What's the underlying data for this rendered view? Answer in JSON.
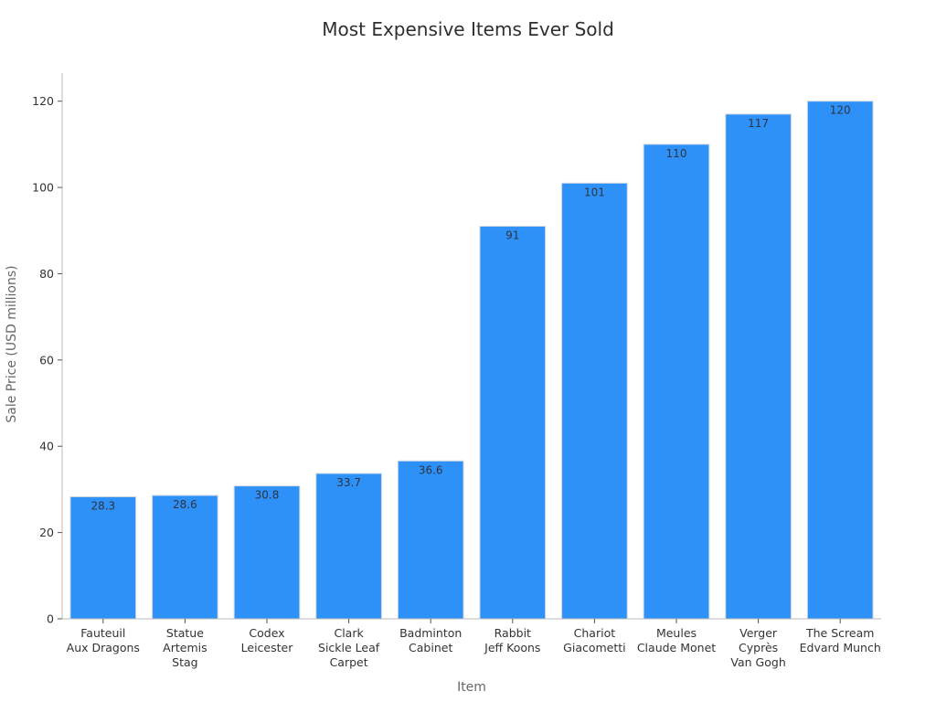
{
  "chart_data": {
    "type": "bar",
    "title": "Most Expensive Items Ever Sold",
    "xlabel": "Item",
    "ylabel": "Sale Price (USD millions)",
    "categories": [
      [
        "Fauteuil",
        "Aux Dragons"
      ],
      [
        "Statue",
        "Artemis",
        "Stag"
      ],
      [
        "Codex",
        "Leicester"
      ],
      [
        "Clark",
        "Sickle Leaf",
        "Carpet"
      ],
      [
        "Badminton",
        "Cabinet"
      ],
      [
        "Rabbit",
        "Jeff Koons"
      ],
      [
        "Chariot",
        "Giacometti"
      ],
      [
        "Meules",
        "Claude Monet"
      ],
      [
        "Verger",
        "Cyprès",
        "Van Gogh"
      ],
      [
        "The Scream",
        "Edvard Munch"
      ]
    ],
    "values": [
      28.3,
      28.6,
      30.8,
      33.7,
      36.6,
      91,
      101,
      110,
      117,
      120
    ],
    "value_labels": [
      "28.3",
      "28.6",
      "30.8",
      "33.7",
      "36.6",
      "91",
      "101",
      "110",
      "117",
      "120"
    ],
    "ylim": [
      0,
      126.5
    ],
    "yticks": [
      0,
      20,
      40,
      60,
      80,
      100,
      120
    ],
    "grid": false,
    "bar_color": "#2e91f7",
    "bar_edge_color": "#cfd8e3"
  }
}
